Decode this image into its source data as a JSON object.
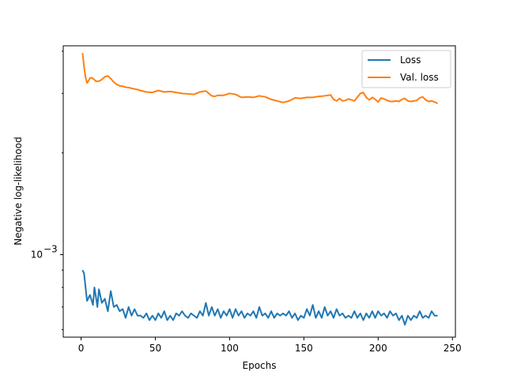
{
  "chart_data": {
    "type": "line",
    "xlabel": "Epochs",
    "ylabel": "Negative log-likelihood",
    "yscale": "log",
    "xlim": [
      -12,
      252
    ],
    "ylim": [
      0.00057,
      0.00415
    ],
    "xticks": [
      0,
      50,
      100,
      150,
      200,
      250
    ],
    "xtick_labels": [
      "0",
      "50",
      "100",
      "150",
      "200",
      "250"
    ],
    "ytick_major": {
      "value": 0.001,
      "label_base": "10",
      "label_exp": "−3"
    },
    "legend": {
      "placement": "top-right"
    },
    "series": [
      {
        "name": "Loss",
        "color": "#1f77b4",
        "x": [
          1,
          2,
          4,
          6,
          8,
          9,
          10,
          11,
          12,
          14,
          16,
          18,
          20,
          22,
          24,
          26,
          28,
          30,
          32,
          34,
          36,
          38,
          40,
          42,
          44,
          46,
          48,
          50,
          52,
          54,
          56,
          58,
          60,
          62,
          64,
          66,
          68,
          70,
          72,
          74,
          76,
          78,
          80,
          82,
          84,
          86,
          88,
          90,
          92,
          94,
          96,
          98,
          100,
          102,
          104,
          106,
          108,
          110,
          112,
          114,
          116,
          118,
          120,
          122,
          124,
          126,
          128,
          130,
          132,
          134,
          136,
          138,
          140,
          142,
          144,
          146,
          148,
          150,
          152,
          154,
          156,
          158,
          160,
          162,
          164,
          166,
          168,
          170,
          172,
          174,
          176,
          178,
          180,
          182,
          184,
          186,
          188,
          190,
          192,
          194,
          196,
          198,
          200,
          202,
          204,
          206,
          208,
          210,
          212,
          214,
          216,
          218,
          220,
          222,
          224,
          226,
          228,
          230,
          232,
          234,
          236,
          238,
          240
        ],
        "values": [
          0.0009,
          0.00088,
          0.00073,
          0.00076,
          0.00071,
          0.0008,
          0.00075,
          0.0007,
          0.00079,
          0.00072,
          0.00074,
          0.00068,
          0.00078,
          0.0007,
          0.00071,
          0.00068,
          0.00069,
          0.00065,
          0.0007,
          0.00066,
          0.00069,
          0.00066,
          0.00066,
          0.00065,
          0.00067,
          0.00064,
          0.00066,
          0.00064,
          0.00067,
          0.00065,
          0.00068,
          0.00064,
          0.00066,
          0.00064,
          0.00067,
          0.00066,
          0.00068,
          0.00066,
          0.00065,
          0.00067,
          0.00066,
          0.00065,
          0.00068,
          0.00066,
          0.00072,
          0.00066,
          0.0007,
          0.00066,
          0.00069,
          0.00065,
          0.00068,
          0.00066,
          0.00069,
          0.00065,
          0.00069,
          0.00066,
          0.00068,
          0.00065,
          0.00067,
          0.00066,
          0.00068,
          0.00065,
          0.0007,
          0.00066,
          0.00067,
          0.00065,
          0.00068,
          0.00065,
          0.00067,
          0.00066,
          0.00067,
          0.00066,
          0.00068,
          0.00065,
          0.00067,
          0.00064,
          0.00066,
          0.00065,
          0.00069,
          0.00066,
          0.00071,
          0.00065,
          0.00068,
          0.00065,
          0.0007,
          0.00066,
          0.00068,
          0.00065,
          0.00069,
          0.00066,
          0.00067,
          0.00065,
          0.00066,
          0.00065,
          0.00068,
          0.00065,
          0.00067,
          0.00064,
          0.00067,
          0.00065,
          0.00068,
          0.00065,
          0.00068,
          0.00066,
          0.00067,
          0.00065,
          0.00068,
          0.00066,
          0.00067,
          0.00064,
          0.00066,
          0.00062,
          0.00066,
          0.00064,
          0.00066,
          0.00065,
          0.00068,
          0.00065,
          0.00066,
          0.00065,
          0.00068,
          0.00066,
          0.00066
        ]
      },
      {
        "name": "Val. loss",
        "color": "#ff7f0e",
        "x": [
          1,
          2,
          3,
          4,
          5,
          6,
          7,
          8,
          9,
          10,
          12,
          14,
          16,
          18,
          20,
          22,
          24,
          26,
          28,
          30,
          32,
          35,
          38,
          40,
          44,
          48,
          52,
          56,
          60,
          64,
          68,
          72,
          76,
          80,
          84,
          88,
          90,
          92,
          96,
          100,
          104,
          108,
          112,
          116,
          120,
          124,
          128,
          132,
          136,
          140,
          144,
          148,
          152,
          156,
          160,
          164,
          168,
          170,
          172,
          174,
          176,
          178,
          180,
          184,
          188,
          190,
          192,
          194,
          196,
          198,
          200,
          202,
          204,
          206,
          208,
          210,
          212,
          214,
          216,
          218,
          220,
          222,
          224,
          226,
          228,
          230,
          232,
          234,
          236,
          238,
          240
        ],
        "values": [
          0.00395,
          0.0036,
          0.00335,
          0.00322,
          0.00327,
          0.00333,
          0.00334,
          0.00332,
          0.00329,
          0.00326,
          0.00326,
          0.0033,
          0.00336,
          0.00338,
          0.00332,
          0.00324,
          0.00319,
          0.00316,
          0.00315,
          0.00313,
          0.00312,
          0.0031,
          0.00308,
          0.00306,
          0.00303,
          0.00302,
          0.00306,
          0.00303,
          0.00304,
          0.00302,
          0.003,
          0.00299,
          0.00298,
          0.00303,
          0.00305,
          0.00295,
          0.00294,
          0.00296,
          0.00296,
          0.003,
          0.00298,
          0.00292,
          0.00293,
          0.00292,
          0.00295,
          0.00293,
          0.00288,
          0.00285,
          0.00282,
          0.00285,
          0.00291,
          0.0029,
          0.00292,
          0.00292,
          0.00294,
          0.00295,
          0.00297,
          0.00288,
          0.00285,
          0.0029,
          0.00285,
          0.00286,
          0.00289,
          0.00285,
          0.003,
          0.00302,
          0.00292,
          0.00287,
          0.00292,
          0.00288,
          0.00283,
          0.00291,
          0.00289,
          0.00286,
          0.00284,
          0.00284,
          0.00285,
          0.00284,
          0.00288,
          0.0029,
          0.00285,
          0.00284,
          0.00285,
          0.00286,
          0.00291,
          0.00293,
          0.00287,
          0.00284,
          0.00285,
          0.00283,
          0.0028
        ]
      }
    ]
  }
}
